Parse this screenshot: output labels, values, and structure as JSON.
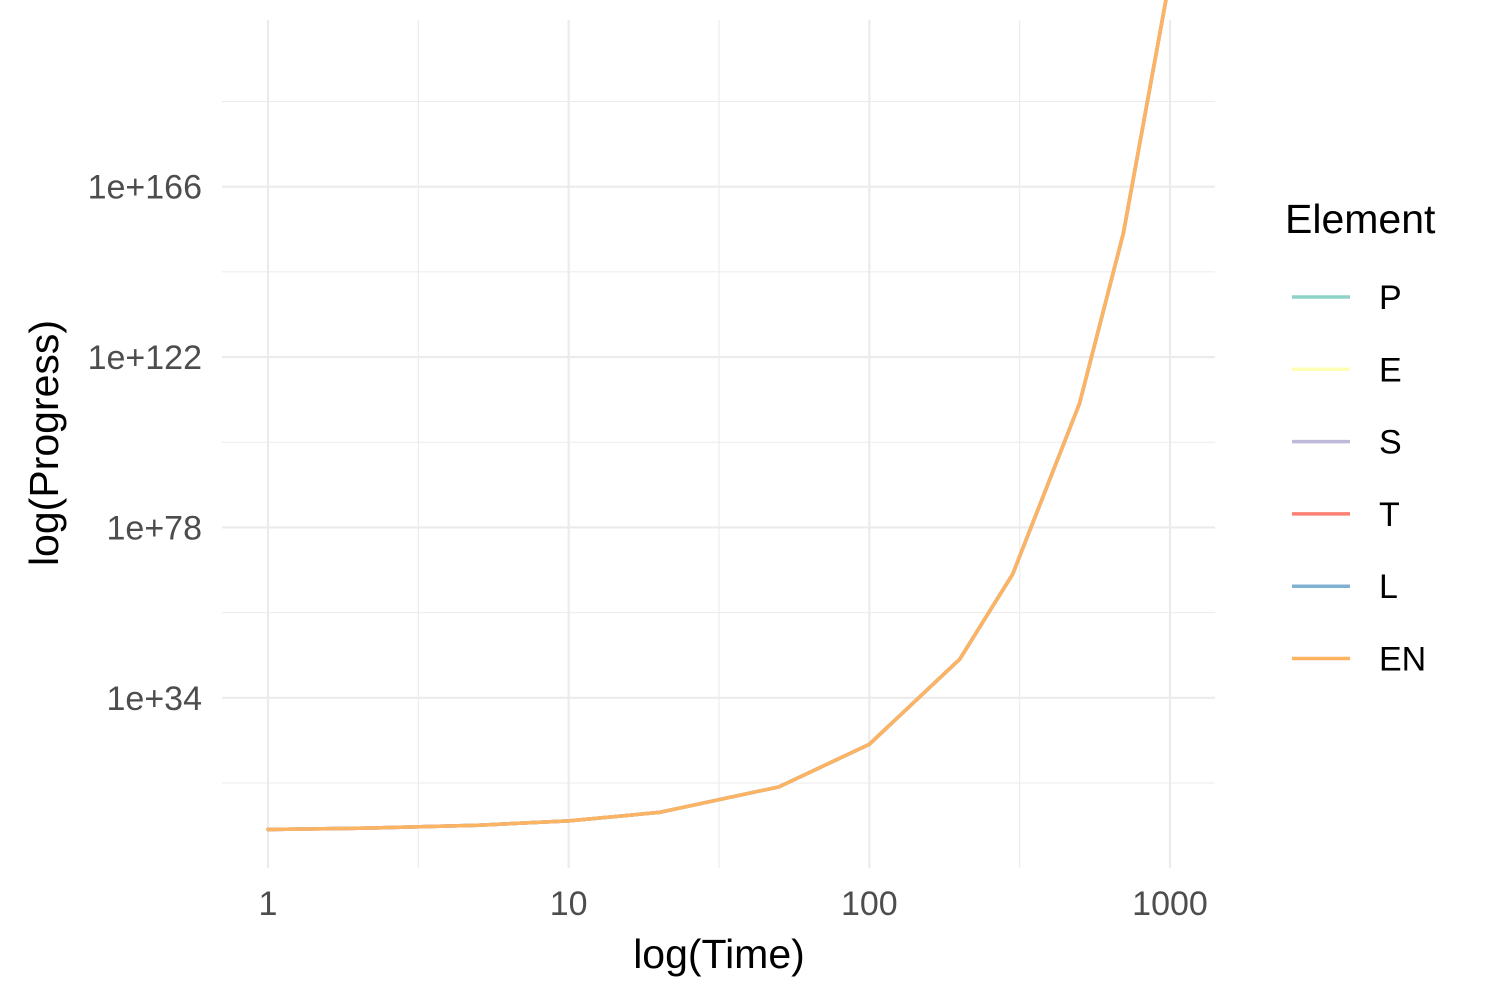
{
  "chart_data": {
    "type": "line",
    "xlabel": "log(Time)",
    "ylabel": "log(Progress)",
    "x_scale": "log10",
    "y_scale": "log10",
    "xlim": [
      1,
      1000
    ],
    "ylim_log10": [
      -2,
      215
    ],
    "x_ticks": [
      {
        "value": 1,
        "label": "1"
      },
      {
        "value": 10,
        "label": "10"
      },
      {
        "value": 100,
        "label": "100"
      },
      {
        "value": 1000,
        "label": "1000"
      }
    ],
    "y_ticks": [
      {
        "log10_value": 34,
        "label": "1e+34"
      },
      {
        "log10_value": 78,
        "label": "1e+78"
      },
      {
        "log10_value": 122,
        "label": "1e+122"
      },
      {
        "log10_value": 166,
        "label": "1e+166"
      }
    ],
    "grid": true,
    "legend": {
      "title": "Element",
      "position": "right",
      "entries": [
        {
          "label": "P",
          "color": "#8DD3C7"
        },
        {
          "label": "E",
          "color": "#FFFFB3"
        },
        {
          "label": "S",
          "color": "#BEBADA"
        },
        {
          "label": "T",
          "color": "#FB8072"
        },
        {
          "label": "L",
          "color": "#80B1D3"
        },
        {
          "label": "EN",
          "color": "#FDB462"
        }
      ]
    },
    "series": [
      {
        "name": "P",
        "color": "#8DD3C7",
        "x": [
          1,
          2,
          5,
          10,
          20,
          50,
          100,
          200,
          300,
          500,
          700,
          1000
        ],
        "y_log10": [
          0,
          0.3,
          1.1,
          2.2,
          4.4,
          11,
          22,
          44,
          66,
          110,
          154,
          220
        ]
      },
      {
        "name": "E",
        "color": "#FFFFB3",
        "x": [
          1,
          2,
          5,
          10,
          20,
          50,
          100,
          200,
          300,
          500,
          700,
          1000
        ],
        "y_log10": [
          0,
          0.3,
          1.1,
          2.2,
          4.4,
          11,
          22,
          44,
          66,
          110,
          154,
          220
        ]
      },
      {
        "name": "S",
        "color": "#BEBADA",
        "x": [
          1,
          2,
          5,
          10,
          20,
          50,
          100,
          200,
          300,
          500,
          700,
          1000
        ],
        "y_log10": [
          0,
          0.3,
          1.1,
          2.2,
          4.4,
          11,
          22,
          44,
          66,
          110,
          154,
          220
        ]
      },
      {
        "name": "T",
        "color": "#FB8072",
        "x": [
          1,
          2,
          5,
          10,
          20,
          50,
          100,
          200,
          300,
          500,
          700,
          1000
        ],
        "y_log10": [
          0,
          0.3,
          1.1,
          2.2,
          4.4,
          11,
          22,
          44,
          66,
          110,
          154,
          220
        ]
      },
      {
        "name": "L",
        "color": "#80B1D3",
        "x": [
          1,
          2,
          5,
          10,
          20,
          50,
          100,
          200,
          300,
          500,
          700,
          1000
        ],
        "y_log10": [
          0,
          0.3,
          1.1,
          2.2,
          4.4,
          11,
          22,
          44,
          66,
          110,
          154,
          220
        ]
      },
      {
        "name": "EN",
        "color": "#FDB462",
        "x": [
          1,
          2,
          5,
          10,
          20,
          50,
          100,
          200,
          300,
          500,
          700,
          1000
        ],
        "y_log10": [
          0,
          0.3,
          1.1,
          2.2,
          4.4,
          11,
          22,
          44,
          66,
          110,
          154,
          220
        ]
      }
    ]
  }
}
